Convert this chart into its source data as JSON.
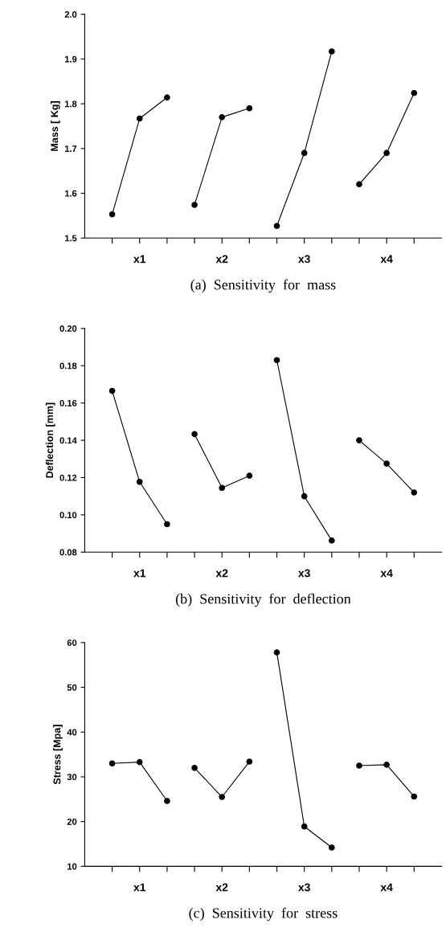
{
  "chart_data": [
    {
      "type": "line",
      "title": "(a)  Sensitivity  for  mass",
      "ylabel": "Mass [ Kg]",
      "categories": [
        null,
        "x1",
        null,
        null,
        "x2",
        null,
        null,
        "x3",
        null,
        null,
        "x4",
        null
      ],
      "ylim": [
        1.5,
        2.0
      ],
      "yticks": [
        {
          "value": 1.5,
          "label": "1.5"
        },
        {
          "value": 1.6,
          "label": "1.6"
        },
        {
          "value": 1.7,
          "label": "1.7"
        },
        {
          "value": 1.8,
          "label": "1.8"
        },
        {
          "value": 1.9,
          "label": "1.9"
        },
        {
          "value": 2.0,
          "label": "2.0"
        }
      ],
      "marker": "circle",
      "line_style": "solid",
      "grid": false,
      "series": [
        {
          "color": "#000000",
          "values": [
            1.553,
            1.767,
            1.814,
            null,
            null,
            null,
            null,
            null,
            null,
            null,
            null,
            null
          ]
        },
        {
          "color": "#000000",
          "values": [
            null,
            null,
            null,
            1.574,
            1.77,
            1.79,
            null,
            null,
            null,
            null,
            null,
            null
          ]
        },
        {
          "color": "#000000",
          "values": [
            null,
            null,
            null,
            null,
            null,
            null,
            1.527,
            1.69,
            1.917,
            null,
            null,
            null
          ]
        },
        {
          "color": "#000000",
          "values": [
            null,
            null,
            null,
            null,
            null,
            null,
            null,
            null,
            null,
            1.62,
            1.69,
            1.824
          ]
        }
      ]
    },
    {
      "type": "line",
      "title": "(b)  Sensitivity  for  deflection",
      "ylabel": "Deflection [mm]",
      "categories": [
        null,
        "x1",
        null,
        null,
        "x2",
        null,
        null,
        "x3",
        null,
        null,
        "x4",
        null
      ],
      "ylim": [
        0.08,
        0.2
      ],
      "yticks": [
        {
          "value": 0.08,
          "label": "0.08"
        },
        {
          "value": 0.1,
          "label": "0.10"
        },
        {
          "value": 0.12,
          "label": "0.12"
        },
        {
          "value": 0.14,
          "label": "0.14"
        },
        {
          "value": 0.16,
          "label": "0.16"
        },
        {
          "value": 0.18,
          "label": "0.18"
        },
        {
          "value": 0.2,
          "label": "0.20"
        }
      ],
      "marker": "circle",
      "line_style": "solid",
      "grid": false,
      "series": [
        {
          "color": "#000000",
          "values": [
            0.1665,
            0.1177,
            0.095,
            null,
            null,
            null,
            null,
            null,
            null,
            null,
            null,
            null
          ]
        },
        {
          "color": "#000000",
          "values": [
            null,
            null,
            null,
            0.1433,
            0.1145,
            0.121,
            null,
            null,
            null,
            null,
            null,
            null
          ]
        },
        {
          "color": "#000000",
          "values": [
            null,
            null,
            null,
            null,
            null,
            null,
            0.183,
            0.11,
            0.0862,
            null,
            null,
            null
          ]
        },
        {
          "color": "#000000",
          "values": [
            null,
            null,
            null,
            null,
            null,
            null,
            null,
            null,
            null,
            0.14,
            0.1275,
            0.112
          ]
        }
      ]
    },
    {
      "type": "line",
      "title": "(c)  Sensitivity  for  stress",
      "ylabel": "Stress [Mpa]",
      "categories": [
        null,
        "x1",
        null,
        null,
        "x2",
        null,
        null,
        "x3",
        null,
        null,
        "x4",
        null
      ],
      "ylim": [
        10,
        60
      ],
      "yticks": [
        10,
        20,
        30,
        40,
        50,
        60
      ],
      "marker": "circle",
      "line_style": "solid",
      "grid": false,
      "series": [
        {
          "color": "#000000",
          "values": [
            33.0,
            33.3,
            24.6,
            null,
            null,
            null,
            null,
            null,
            null,
            null,
            null,
            null
          ]
        },
        {
          "color": "#000000",
          "values": [
            null,
            null,
            null,
            32.0,
            25.5,
            33.4,
            null,
            null,
            null,
            null,
            null,
            null
          ]
        },
        {
          "color": "#000000",
          "values": [
            null,
            null,
            null,
            null,
            null,
            null,
            57.8,
            18.9,
            14.2,
            null,
            null,
            null
          ]
        },
        {
          "color": "#000000",
          "values": [
            null,
            null,
            null,
            null,
            null,
            null,
            null,
            null,
            null,
            32.5,
            32.7,
            25.6
          ]
        }
      ]
    }
  ]
}
